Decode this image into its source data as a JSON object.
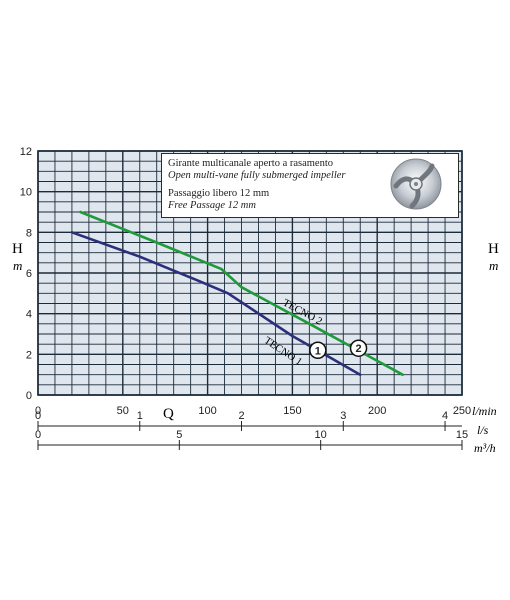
{
  "info": {
    "line1": "Girante multicanale aperto a rasamento",
    "line2": "Open multi-vane fully submerged impeller",
    "line3": "Passaggio libero 12 mm",
    "line4": "Free Passage 12 mm"
  },
  "axis_labels": {
    "h_left": "H",
    "m_left": "m",
    "h_right": "H",
    "m_right": "m",
    "q": "Q",
    "unit_lmin": "l/min",
    "unit_ls": "l/s",
    "unit_m3h": "m³/h"
  },
  "colors": {
    "grid": "#1c2b3a",
    "gridBg": "#dfe6ee",
    "tecno1": "#2b2f7a",
    "tecno2": "#1f9a3a"
  },
  "chart_data": {
    "type": "line",
    "xlabel": "Q",
    "ylabel": "H",
    "x_unit": "l/min",
    "y_unit": "m",
    "xlim": [
      0,
      250
    ],
    "ylim": [
      0,
      12
    ],
    "grid": true,
    "x_ticks": [
      0,
      50,
      100,
      150,
      200,
      250
    ],
    "y_ticks": [
      0,
      2,
      4,
      6,
      8,
      10,
      12
    ],
    "secondary_axes": [
      {
        "unit": "l/s",
        "ticks": [
          0,
          1,
          2,
          3,
          4
        ],
        "max": 4.1667
      },
      {
        "unit": "m³/h",
        "ticks": [
          0,
          5,
          10,
          15
        ],
        "max": 15
      }
    ],
    "series": [
      {
        "name": "TECNO 1",
        "marker_label": "1",
        "points": [
          [
            20,
            8.0
          ],
          [
            60,
            6.8
          ],
          [
            95,
            5.6
          ],
          [
            112,
            5.0
          ],
          [
            150,
            2.9
          ],
          [
            190,
            1.0
          ]
        ]
      },
      {
        "name": "TECNO 2",
        "marker_label": "2",
        "points": [
          [
            25,
            9.0
          ],
          [
            70,
            7.5
          ],
          [
            108,
            6.2
          ],
          [
            120,
            5.3
          ],
          [
            160,
            3.5
          ],
          [
            215,
            1.0
          ]
        ]
      }
    ]
  }
}
